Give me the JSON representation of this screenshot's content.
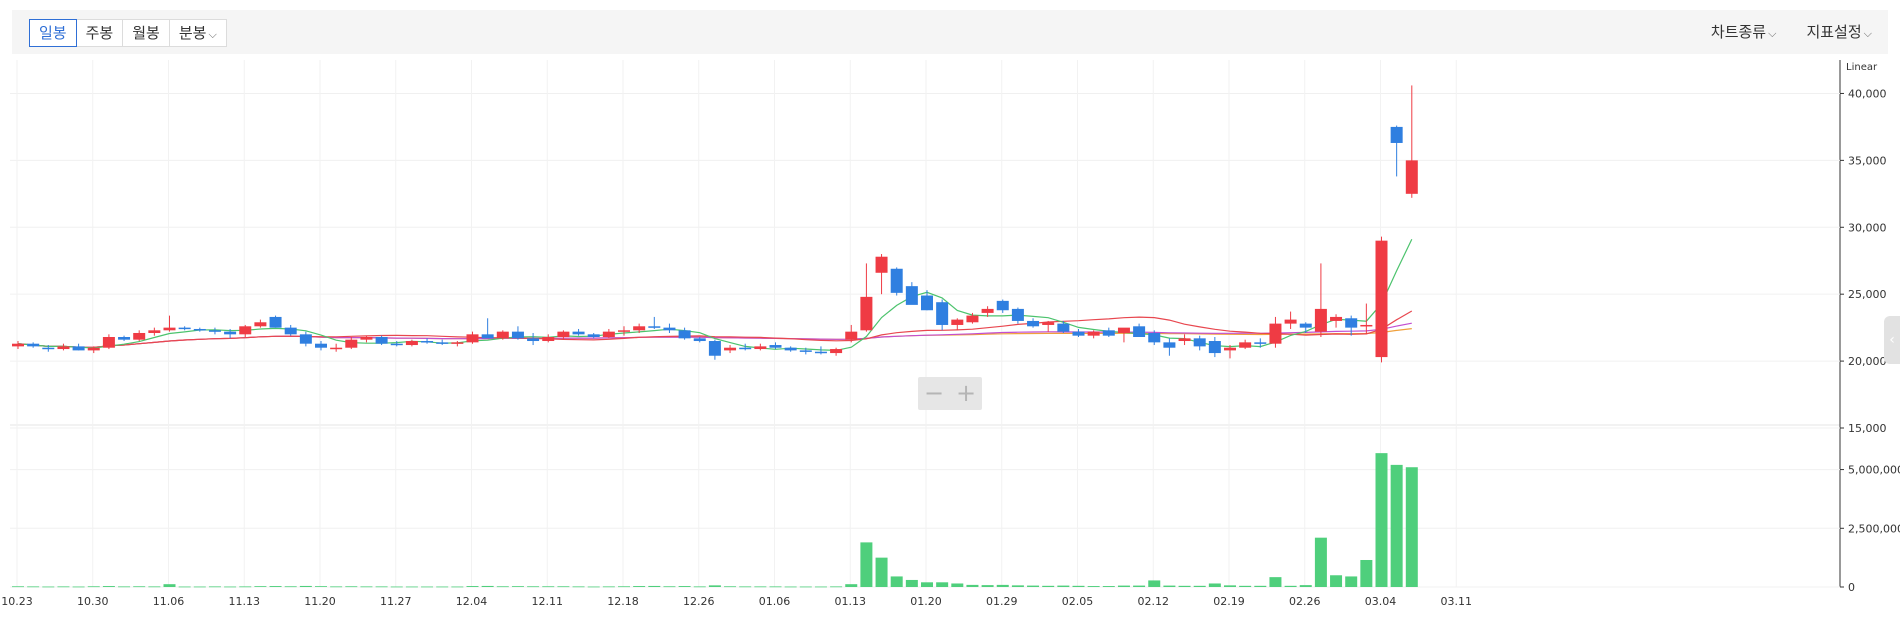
{
  "toolbar": {
    "periods": [
      "일봉",
      "주봉",
      "월봉",
      "분봉"
    ],
    "active_period": "일봉",
    "chart_type_label": "차트종류",
    "indicator_label": "지표설정"
  },
  "zoom": {
    "minus": "−",
    "plus": "+"
  },
  "side_tab_icon": "chevron-left-icon",
  "colors": {
    "up": "#ef3b44",
    "down": "#2f7fe0",
    "volume": "#4fcf7c",
    "ma5": "#4cc36d",
    "ma20": "#e8474f",
    "ma60": "#c24fd1",
    "ma120": "#f0a03c"
  },
  "chart_data": {
    "type": "candlestick",
    "price_scale_label": "Linear",
    "price_ticks": [
      "40,000",
      "35,000",
      "30,000",
      "25,000",
      "20,000",
      "15,000"
    ],
    "volume_ticks": [
      "5,000,000",
      "2,500,000",
      "0"
    ],
    "price_range": [
      15000,
      42500
    ],
    "volume_range": [
      0,
      6600000
    ],
    "x_tick_labels": [
      "10.23",
      "10.30",
      "11.06",
      "11.13",
      "11.20",
      "11.27",
      "12.04",
      "12.11",
      "12.18",
      "12.26",
      "01.06",
      "01.13",
      "01.20",
      "01.29",
      "02.05",
      "02.12",
      "02.19",
      "02.26",
      "03.04",
      "03.11"
    ],
    "x_tick_index": [
      0,
      5,
      10,
      15,
      20,
      25,
      30,
      35,
      40,
      45,
      50,
      55,
      60,
      65,
      70,
      75,
      80,
      85,
      90,
      95
    ],
    "candles": [
      [
        21100,
        21500,
        20900,
        21300,
        30000
      ],
      [
        21300,
        21400,
        21000,
        21100,
        25000
      ],
      [
        21000,
        21200,
        20700,
        20900,
        20000
      ],
      [
        20900,
        21300,
        20800,
        21100,
        25000
      ],
      [
        21100,
        21300,
        20800,
        20800,
        20000
      ],
      [
        20800,
        21100,
        20600,
        21000,
        30000
      ],
      [
        21000,
        22000,
        20900,
        21800,
        40000
      ],
      [
        21800,
        21900,
        21500,
        21600,
        25000
      ],
      [
        21600,
        22300,
        21500,
        22100,
        30000
      ],
      [
        22100,
        22500,
        21900,
        22300,
        25000
      ],
      [
        22300,
        23400,
        22200,
        22500,
        120000
      ],
      [
        22500,
        22600,
        22300,
        22400,
        20000
      ],
      [
        22400,
        22500,
        22200,
        22300,
        20000
      ],
      [
        22300,
        22500,
        22000,
        22200,
        25000
      ],
      [
        22200,
        22400,
        21700,
        22000,
        20000
      ],
      [
        22000,
        22700,
        21800,
        22600,
        25000
      ],
      [
        22600,
        23100,
        22500,
        22900,
        35000
      ],
      [
        23300,
        23400,
        22500,
        22500,
        40000
      ],
      [
        22500,
        22700,
        21900,
        22000,
        30000
      ],
      [
        22000,
        22200,
        21100,
        21300,
        45000
      ],
      [
        21300,
        21500,
        20800,
        21000,
        35000
      ],
      [
        20900,
        21300,
        20700,
        21000,
        25000
      ],
      [
        21000,
        21800,
        20900,
        21600,
        30000
      ],
      [
        21600,
        21900,
        21400,
        21800,
        25000
      ],
      [
        21800,
        21900,
        21200,
        21300,
        25000
      ],
      [
        21300,
        21500,
        21100,
        21200,
        20000
      ],
      [
        21200,
        21600,
        21100,
        21500,
        20000
      ],
      [
        21500,
        21700,
        21300,
        21400,
        20000
      ],
      [
        21400,
        21600,
        21200,
        21300,
        20000
      ],
      [
        21300,
        21500,
        21100,
        21400,
        20000
      ],
      [
        21400,
        22200,
        21300,
        22000,
        40000
      ],
      [
        22000,
        23200,
        21800,
        21700,
        45000
      ],
      [
        21700,
        22300,
        21600,
        22200,
        30000
      ],
      [
        22200,
        22600,
        21600,
        21700,
        35000
      ],
      [
        21700,
        22100,
        21200,
        21500,
        30000
      ],
      [
        21500,
        22000,
        21400,
        21800,
        30000
      ],
      [
        21800,
        22300,
        21600,
        22200,
        30000
      ],
      [
        22200,
        22400,
        21900,
        22000,
        25000
      ],
      [
        22000,
        22100,
        21700,
        21800,
        20000
      ],
      [
        21800,
        22400,
        21700,
        22200,
        25000
      ],
      [
        22200,
        22600,
        21900,
        22300,
        30000
      ],
      [
        22300,
        22800,
        22100,
        22600,
        40000
      ],
      [
        22600,
        23300,
        22400,
        22500,
        45000
      ],
      [
        22500,
        22800,
        22100,
        22300,
        30000
      ],
      [
        22300,
        22500,
        21600,
        21700,
        40000
      ],
      [
        21700,
        21800,
        21400,
        21500,
        25000
      ],
      [
        21500,
        21600,
        20100,
        20400,
        70000
      ],
      [
        20800,
        21200,
        20600,
        21000,
        30000
      ],
      [
        21000,
        21300,
        20800,
        20900,
        25000
      ],
      [
        20900,
        21300,
        20800,
        21100,
        25000
      ],
      [
        21200,
        21400,
        20900,
        21000,
        25000
      ],
      [
        21000,
        21100,
        20700,
        20800,
        20000
      ],
      [
        20800,
        21000,
        20500,
        20700,
        20000
      ],
      [
        20700,
        21100,
        20500,
        20600,
        20000
      ],
      [
        20600,
        21000,
        20400,
        20900,
        25000
      ],
      [
        21600,
        22700,
        21400,
        22200,
        120000
      ],
      [
        22300,
        27300,
        22200,
        24800,
        1900000
      ],
      [
        26600,
        28000,
        25000,
        27800,
        1250000
      ],
      [
        26900,
        27000,
        24900,
        25100,
        450000
      ],
      [
        25600,
        25900,
        24300,
        24200,
        300000
      ],
      [
        24900,
        25300,
        23800,
        23800,
        200000
      ],
      [
        24400,
        24600,
        22300,
        22700,
        200000
      ],
      [
        22700,
        23200,
        22300,
        23100,
        150000
      ],
      [
        22900,
        23600,
        22800,
        23400,
        90000
      ],
      [
        23600,
        24100,
        23300,
        23900,
        80000
      ],
      [
        24500,
        24600,
        23600,
        23800,
        90000
      ],
      [
        23900,
        24000,
        22800,
        23000,
        70000
      ],
      [
        23000,
        23200,
        22500,
        22600,
        60000
      ],
      [
        22700,
        23000,
        22200,
        22900,
        50000
      ],
      [
        22800,
        23000,
        22100,
        22200,
        60000
      ],
      [
        22200,
        22400,
        21800,
        21900,
        50000
      ],
      [
        21900,
        22300,
        21700,
        22200,
        40000
      ],
      [
        22300,
        22500,
        21800,
        21900,
        40000
      ],
      [
        22100,
        22400,
        21400,
        22500,
        60000
      ],
      [
        22600,
        22800,
        21900,
        21800,
        60000
      ],
      [
        22100,
        22300,
        21200,
        21400,
        280000
      ],
      [
        21400,
        21700,
        20400,
        21000,
        60000
      ],
      [
        21500,
        22000,
        21200,
        21700,
        50000
      ],
      [
        21700,
        21900,
        20800,
        21100,
        50000
      ],
      [
        21500,
        21800,
        20300,
        20600,
        150000
      ],
      [
        20800,
        21200,
        20200,
        21000,
        70000
      ],
      [
        21000,
        21600,
        20900,
        21400,
        50000
      ],
      [
        21400,
        21700,
        21000,
        21300,
        50000
      ],
      [
        21300,
        23300,
        21000,
        22800,
        420000
      ],
      [
        22800,
        23700,
        22400,
        23100,
        50000
      ],
      [
        22800,
        22900,
        22100,
        22500,
        80000
      ],
      [
        22200,
        27300,
        21800,
        23900,
        2100000
      ],
      [
        23000,
        23500,
        22500,
        23300,
        500000
      ],
      [
        23200,
        23400,
        21900,
        22500,
        450000
      ],
      [
        22600,
        24300,
        22000,
        22700,
        1150000
      ],
      [
        20300,
        29300,
        19900,
        29000,
        5700000
      ],
      [
        37500,
        37600,
        33800,
        36300,
        5200000
      ],
      [
        32500,
        40600,
        32200,
        35000,
        5100000
      ]
    ],
    "ma_series": [
      "ma5",
      "ma20",
      "ma60",
      "ma120"
    ]
  }
}
